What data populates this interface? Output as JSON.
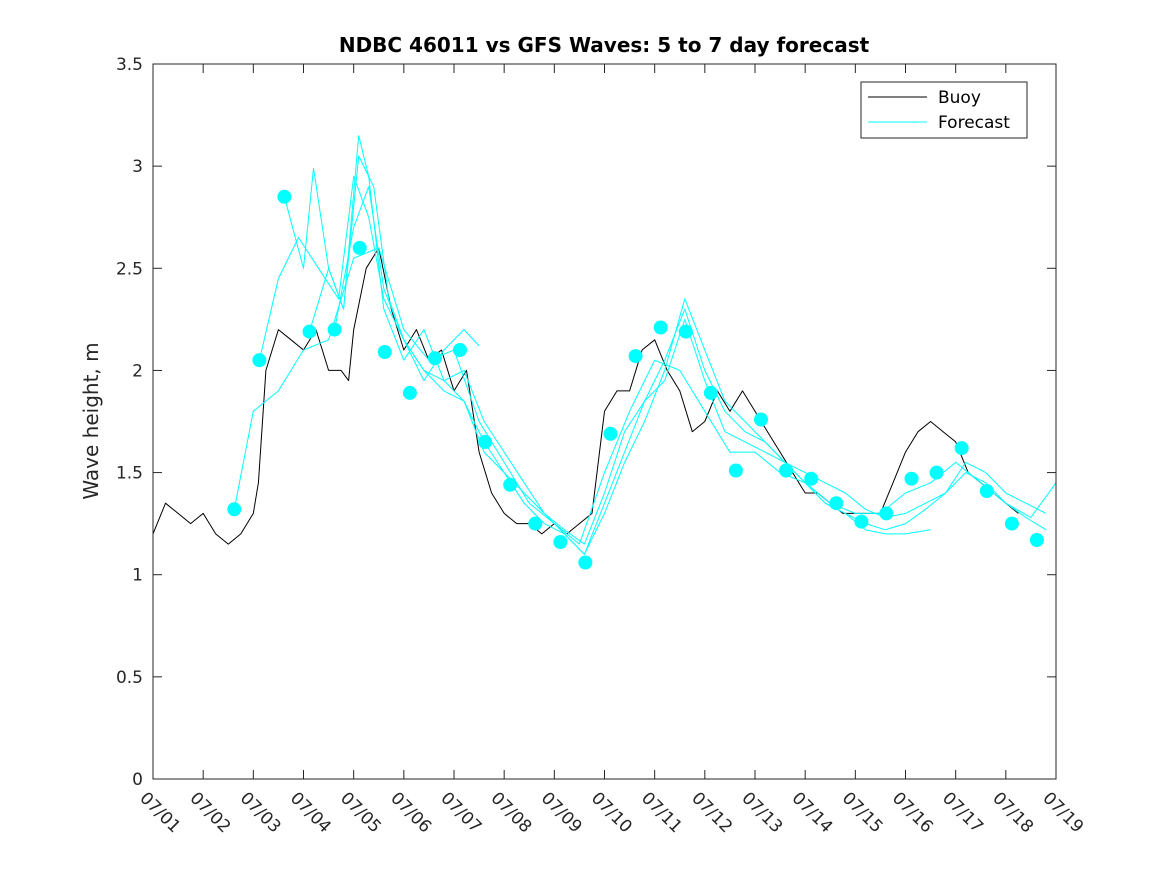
{
  "chart_data": {
    "type": "line",
    "title": "NDBC 46011 vs GFS Waves: 5 to 7 day forecast",
    "xlabel": "",
    "ylabel": "Wave height, m",
    "xlim": [
      "07/01",
      "07/19"
    ],
    "ylim": [
      0,
      3.5
    ],
    "x_ticks": [
      "07/01",
      "07/02",
      "07/03",
      "07/04",
      "07/05",
      "07/06",
      "07/07",
      "07/08",
      "07/09",
      "07/10",
      "07/11",
      "07/12",
      "07/13",
      "07/14",
      "07/15",
      "07/16",
      "07/17",
      "07/18",
      "07/19"
    ],
    "y_ticks": [
      "0",
      "0.5",
      "1",
      "1.5",
      "2",
      "2.5",
      "3",
      "3.5"
    ],
    "grid": false,
    "legend_position": "top-right",
    "colors": {
      "buoy": "#000000",
      "forecast": "#00ffff"
    },
    "series": [
      {
        "name": "Buoy",
        "style": "line",
        "x": [
          1.0,
          1.25,
          1.5,
          1.75,
          2.0,
          2.25,
          2.5,
          2.75,
          3.0,
          3.1,
          3.25,
          3.5,
          3.75,
          4.0,
          4.25,
          4.5,
          4.75,
          4.9,
          5.0,
          5.25,
          5.5,
          5.75,
          6.0,
          6.25,
          6.5,
          6.75,
          7.0,
          7.25,
          7.5,
          7.75,
          8.0,
          8.25,
          8.5,
          8.75,
          9.0,
          9.25,
          9.5,
          9.75,
          10.0,
          10.25,
          10.5,
          10.75,
          11.0,
          11.25,
          11.5,
          11.75,
          12.0,
          12.25,
          12.5,
          12.75,
          13.0,
          13.25,
          13.5,
          13.75,
          14.0,
          14.25,
          14.5,
          14.75,
          15.0,
          15.25,
          15.5,
          15.75,
          16.0,
          16.25,
          16.5,
          16.75,
          17.0,
          17.25,
          17.5,
          17.75,
          18.0,
          18.25
        ],
        "y": [
          1.2,
          1.35,
          1.3,
          1.25,
          1.3,
          1.2,
          1.15,
          1.2,
          1.3,
          1.45,
          2.0,
          2.2,
          2.15,
          2.1,
          2.2,
          2.0,
          2.0,
          1.95,
          2.2,
          2.5,
          2.6,
          2.3,
          2.1,
          2.2,
          2.05,
          2.1,
          1.9,
          2.0,
          1.6,
          1.4,
          1.3,
          1.25,
          1.25,
          1.2,
          1.25,
          1.2,
          1.25,
          1.3,
          1.8,
          1.9,
          1.9,
          2.1,
          2.15,
          2.0,
          1.9,
          1.7,
          1.75,
          1.9,
          1.8,
          1.9,
          1.8,
          1.7,
          1.6,
          1.5,
          1.4,
          1.4,
          1.35,
          1.3,
          1.3,
          1.3,
          1.3,
          1.45,
          1.6,
          1.7,
          1.75,
          1.7,
          1.65,
          1.5,
          1.45,
          1.4,
          1.35,
          1.3
        ]
      },
      {
        "name": "Forecast",
        "style": "markers",
        "x": [
          2.62,
          3.12,
          3.62,
          4.12,
          4.62,
          5.12,
          5.62,
          6.12,
          6.62,
          7.12,
          7.62,
          8.12,
          8.62,
          9.12,
          9.62,
          10.12,
          10.62,
          11.12,
          11.62,
          12.12,
          12.62,
          13.12,
          13.62,
          14.12,
          14.62,
          15.12,
          15.62,
          16.12,
          16.62,
          17.12,
          17.62,
          18.12,
          18.62
        ],
        "y": [
          1.32,
          2.05,
          2.85,
          2.19,
          2.2,
          2.6,
          2.09,
          1.89,
          2.06,
          2.1,
          1.65,
          1.44,
          1.25,
          1.16,
          1.06,
          1.69,
          2.07,
          2.21,
          2.19,
          1.89,
          1.51,
          1.76,
          1.51,
          1.47,
          1.35,
          1.26,
          1.3,
          1.47,
          1.5,
          1.62,
          1.41,
          1.25,
          1.17
        ]
      },
      {
        "name": "",
        "style": "line",
        "x": [
          2.62,
          3.0,
          3.5,
          4.0,
          4.5,
          5.0,
          5.5,
          6.0,
          6.5,
          7.0,
          7.5,
          8.0,
          8.5,
          9.0,
          9.5,
          10.0,
          10.5,
          11.0,
          11.5,
          12.0,
          12.5,
          13.0,
          13.5,
          14.0,
          14.5,
          15.0,
          15.5,
          16.0,
          16.5,
          17.0,
          17.5,
          18.0,
          18.5,
          19.0
        ],
        "y": [
          1.32,
          1.8,
          1.9,
          2.1,
          2.15,
          2.55,
          2.6,
          2.2,
          2.05,
          2.1,
          1.75,
          1.55,
          1.35,
          1.25,
          1.15,
          1.5,
          1.8,
          2.05,
          2.0,
          1.8,
          1.6,
          1.6,
          1.5,
          1.45,
          1.35,
          1.3,
          1.3,
          1.4,
          1.45,
          1.55,
          1.45,
          1.35,
          1.28,
          1.45
        ]
      },
      {
        "name": "",
        "style": "line",
        "x": [
          3.12,
          3.5,
          3.9,
          4.3,
          4.7,
          5.0,
          5.3,
          5.6,
          6.0,
          6.4,
          6.8,
          7.2,
          7.6,
          8.0,
          8.4,
          8.8,
          9.2,
          9.6,
          10.0,
          10.4,
          10.8,
          11.2,
          11.6,
          12.0,
          12.4,
          12.8,
          13.2,
          13.6,
          14.0,
          14.4,
          14.8,
          15.2,
          15.6,
          16.0,
          16.4,
          16.8,
          17.2,
          17.6,
          18.0,
          18.4,
          18.8
        ],
        "y": [
          2.05,
          2.45,
          2.65,
          2.5,
          2.35,
          2.95,
          2.75,
          2.35,
          2.15,
          2.0,
          1.9,
          1.85,
          1.65,
          1.5,
          1.4,
          1.3,
          1.22,
          1.15,
          1.4,
          1.7,
          1.85,
          1.95,
          2.25,
          1.95,
          1.7,
          1.65,
          1.6,
          1.55,
          1.5,
          1.45,
          1.4,
          1.32,
          1.28,
          1.3,
          1.35,
          1.4,
          1.5,
          1.45,
          1.35,
          1.28,
          1.22
        ]
      },
      {
        "name": "",
        "style": "line",
        "x": [
          3.62,
          4.0,
          4.2,
          4.5,
          4.8,
          5.1,
          5.3,
          5.6,
          6.0,
          6.4,
          6.8,
          7.2,
          7.6,
          8.0,
          8.4,
          8.8,
          9.2,
          9.6,
          10.0,
          10.4,
          10.8,
          11.2,
          11.6,
          12.0,
          12.4,
          12.8,
          13.2,
          13.6,
          14.0,
          14.4,
          14.8,
          15.2,
          15.6,
          16.0,
          16.4,
          16.8,
          17.2,
          17.6,
          18.0,
          18.4,
          18.8
        ],
        "y": [
          2.85,
          2.5,
          2.99,
          2.5,
          2.3,
          3.15,
          2.95,
          2.3,
          2.05,
          2.2,
          1.95,
          2.0,
          1.75,
          1.6,
          1.45,
          1.3,
          1.2,
          1.1,
          1.3,
          1.55,
          1.75,
          2.0,
          2.35,
          2.1,
          1.85,
          1.75,
          1.65,
          1.55,
          1.45,
          1.35,
          1.3,
          1.25,
          1.22,
          1.25,
          1.32,
          1.4,
          1.55,
          1.5,
          1.4,
          1.35,
          1.3
        ]
      },
      {
        "name": "",
        "style": "line",
        "x": [
          4.12,
          4.5,
          4.8,
          5.1,
          5.4,
          5.7,
          6.0,
          6.4,
          6.8,
          7.2,
          7.6,
          8.0,
          8.4,
          8.8,
          9.2,
          9.6,
          10.0,
          10.4,
          10.8,
          11.2,
          11.6,
          12.0,
          12.4,
          12.8,
          13.2,
          13.6,
          14.0,
          14.4,
          14.8,
          15.2,
          15.6,
          16.0,
          16.5
        ],
        "y": [
          2.19,
          2.5,
          2.3,
          3.05,
          2.9,
          2.35,
          2.15,
          2.0,
          1.95,
          1.85,
          1.6,
          1.5,
          1.35,
          1.25,
          1.2,
          1.1,
          1.35,
          1.6,
          1.85,
          2.05,
          2.3,
          2.0,
          1.8,
          1.7,
          1.65,
          1.55,
          1.45,
          1.35,
          1.3,
          1.22,
          1.2,
          1.2,
          1.22
        ]
      },
      {
        "name": "",
        "style": "line",
        "x": [
          4.62,
          5.0,
          5.3,
          5.6,
          6.0,
          6.4,
          6.8,
          7.2,
          7.5
        ],
        "y": [
          2.2,
          2.7,
          2.9,
          2.4,
          2.15,
          1.95,
          2.1,
          2.2,
          2.12
        ]
      }
    ]
  }
}
